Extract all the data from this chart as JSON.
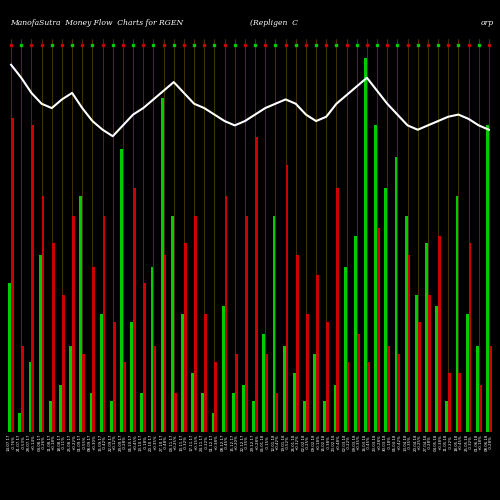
{
  "title_left": "ManofaSutra  Money Flow  Charts for RGEN",
  "title_center": "(Repligen  C",
  "title_right": "orp",
  "background_color": "#000000",
  "bar_color_positive": "#00cc00",
  "bar_color_negative": "#cc0000",
  "grid_color": "#7a5500",
  "line_color": "#ffffff",
  "line_width": 1.5,
  "green_bars": [
    0.38,
    0.05,
    0.18,
    0.45,
    0.08,
    0.12,
    0.22,
    0.6,
    0.1,
    0.3,
    0.08,
    0.72,
    0.28,
    0.1,
    0.42,
    0.85,
    0.55,
    0.3,
    0.15,
    0.1,
    0.05,
    0.32,
    0.1,
    0.12,
    0.08,
    0.25,
    0.55,
    0.22,
    0.15,
    0.08,
    0.2,
    0.08,
    0.12,
    0.42,
    0.5,
    0.95,
    0.78,
    0.62,
    0.7,
    0.55,
    0.35,
    0.48,
    0.32,
    0.08,
    0.6,
    0.3,
    0.22,
    0.78
  ],
  "red_bars": [
    0.8,
    0.22,
    0.78,
    0.6,
    0.48,
    0.35,
    0.55,
    0.2,
    0.42,
    0.55,
    0.28,
    0.18,
    0.62,
    0.38,
    0.22,
    0.45,
    0.1,
    0.48,
    0.55,
    0.3,
    0.18,
    0.6,
    0.2,
    0.55,
    0.75,
    0.2,
    0.1,
    0.68,
    0.45,
    0.3,
    0.4,
    0.28,
    0.62,
    0.18,
    0.25,
    0.18,
    0.52,
    0.22,
    0.2,
    0.45,
    0.28,
    0.35,
    0.5,
    0.15,
    0.15,
    0.48,
    0.12,
    0.22
  ],
  "line_values": [
    0.88,
    0.82,
    0.75,
    0.7,
    0.68,
    0.72,
    0.75,
    0.68,
    0.62,
    0.58,
    0.55,
    0.6,
    0.65,
    0.68,
    0.72,
    0.76,
    0.8,
    0.75,
    0.7,
    0.68,
    0.65,
    0.62,
    0.6,
    0.62,
    0.65,
    0.68,
    0.7,
    0.72,
    0.7,
    0.65,
    0.62,
    0.64,
    0.7,
    0.74,
    0.78,
    0.82,
    0.76,
    0.7,
    0.65,
    0.6,
    0.58,
    0.6,
    0.62,
    0.64,
    0.65,
    0.63,
    0.6,
    0.58
  ],
  "tick_labels": [
    "14.07.17",
    "21.07.17",
    "28.07.17",
    "04.08.17",
    "11.08.17",
    "18.08.17",
    "25.08.17",
    "01.09.17",
    "08.09.17",
    "15.09.17",
    "22.09.17",
    "29.09.17",
    "06.10.17",
    "13.10.17",
    "20.10.17",
    "27.10.17",
    "03.11.17",
    "10.11.17",
    "17.11.17",
    "24.11.17",
    "01.12.17",
    "08.12.17",
    "15.12.17",
    "22.12.17",
    "29.12.17",
    "05.01.18",
    "12.01.18",
    "19.01.18",
    "26.01.18",
    "02.02.18",
    "09.02.18",
    "16.02.18",
    "23.02.18",
    "02.03.18",
    "09.03.18",
    "16.03.18",
    "23.03.18",
    "30.03.18",
    "06.04.18",
    "13.04.18",
    "20.04.18",
    "27.04.18",
    "04.05.18",
    "11.05.18",
    "18.05.18",
    "25.05.18",
    "01.06.18",
    "08.06.18"
  ],
  "tick_pcts": [
    "-0.76%",
    "-0.53%",
    "+0.14%",
    "-0.26%",
    "+0.18%",
    "-0.11%",
    "+0.22%",
    "-0.55%",
    "+0.30%",
    "-0.42%",
    "+0.12%",
    "-0.28%",
    "+0.45%",
    "-0.18%",
    "+0.35%",
    "-0.48%",
    "+0.25%",
    "-0.32%",
    "+0.15%",
    "-0.22%",
    "+0.38%",
    "-0.45%",
    "+0.20%",
    "-0.35%",
    "+0.28%",
    "-0.15%",
    "+0.42%",
    "-0.52%",
    "+0.32%",
    "-0.25%",
    "+0.18%",
    "-0.38%",
    "+0.48%",
    "-0.22%",
    "+0.35%",
    "-0.45%",
    "+0.28%",
    "-0.18%",
    "+0.42%",
    "-0.35%",
    "+0.25%",
    "-0.28%",
    "+0.38%",
    "-0.22%",
    "+0.45%",
    "-0.32%",
    "+0.18%",
    "-0.28%"
  ],
  "n_bars": 48,
  "ylim_max": 1.0,
  "bar_width": 0.28,
  "top_strip_color": "#000000",
  "dot_colors": [
    "#cc0000",
    "#00cc00",
    "#cc0000",
    "#cc0000",
    "#00cc00",
    "#cc0000",
    "#00cc00",
    "#cc0000",
    "#00cc00",
    "#cc0000",
    "#00cc00",
    "#cc0000",
    "#00cc00",
    "#cc0000",
    "#00cc00",
    "#cc0000",
    "#00cc00",
    "#cc0000",
    "#00cc00",
    "#cc0000",
    "#00cc00",
    "#cc0000",
    "#00cc00",
    "#cc0000",
    "#00cc00",
    "#cc0000",
    "#00cc00",
    "#cc0000",
    "#00cc00",
    "#cc0000",
    "#00cc00",
    "#cc0000",
    "#00cc00",
    "#cc0000",
    "#00cc00",
    "#cc0000",
    "#00cc00",
    "#cc0000",
    "#00cc00",
    "#cc0000",
    "#00cc00",
    "#cc0000",
    "#00cc00",
    "#cc0000",
    "#00cc00",
    "#cc0000",
    "#00cc00",
    "#cc0000"
  ]
}
